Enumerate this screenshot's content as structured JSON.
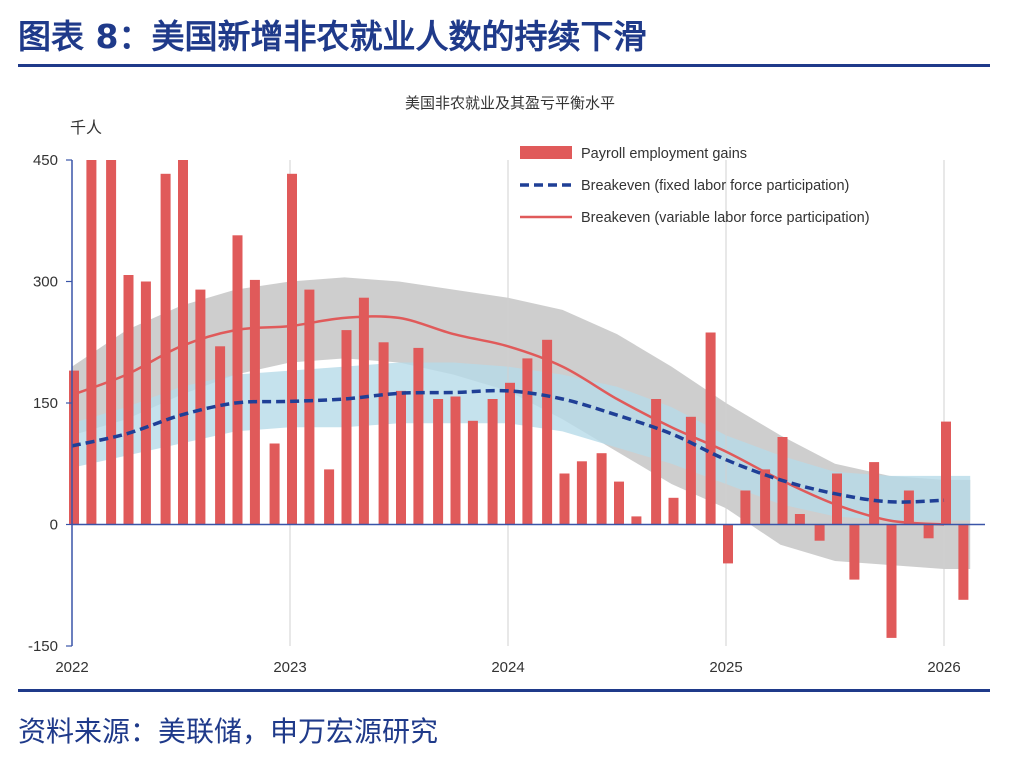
{
  "figure": {
    "title": "图表 8：美国新增非农就业人数的持续下滑",
    "source": "资料来源：美联储，申万宏源研究"
  },
  "colors": {
    "brand": "#1f3a8a",
    "bar": "#e05a5a",
    "breakeven_fixed": "#1f3f96",
    "breakeven_variable": "#e05a5a",
    "band_gray": "#c9c9c9",
    "band_blue": "#b7dbe8",
    "axis": "#3a55a8"
  },
  "chart_data": {
    "type": "bar",
    "title": "美国非农就业及其盈亏平衡水平",
    "ylabel": "千人",
    "xlabel": "",
    "ylim": [
      -150,
      450
    ],
    "xlim": [
      2022.0,
      2026.12
    ],
    "yticks": [
      450,
      300,
      150,
      0,
      -150
    ],
    "xticks": [
      2022,
      2023,
      2024,
      2025,
      2026
    ],
    "xtick_labels": [
      "2022",
      "2023",
      "2024",
      "2025",
      "2026"
    ],
    "legend": {
      "position": "top-right",
      "entries": [
        "Payroll employment gains",
        "Breakeven (fixed labor force participation)",
        "Breakeven (variable labor force participation)"
      ]
    },
    "series": [
      {
        "name": "Payroll employment gains",
        "kind": "bar",
        "x": [
          2022.0,
          2022.08,
          2022.17,
          2022.25,
          2022.33,
          2022.42,
          2022.5,
          2022.58,
          2022.67,
          2022.75,
          2022.83,
          2022.92,
          2023.0,
          2023.08,
          2023.17,
          2023.25,
          2023.33,
          2023.42,
          2023.5,
          2023.58,
          2023.67,
          2023.75,
          2023.83,
          2023.92,
          2024.0,
          2024.08,
          2024.17,
          2024.25,
          2024.33,
          2024.42,
          2024.5,
          2024.58,
          2024.67,
          2024.75,
          2024.83,
          2024.92,
          2025.0,
          2025.08,
          2025.17,
          2025.25,
          2025.33,
          2025.42,
          2025.5,
          2025.58,
          2025.67,
          2025.75,
          2025.83,
          2025.92,
          2026.0,
          2026.08
        ],
        "values": [
          190,
          450,
          450,
          308,
          300,
          433,
          450,
          290,
          220,
          357,
          302,
          100,
          433,
          290,
          68,
          240,
          280,
          225,
          165,
          218,
          155,
          158,
          128,
          155,
          175,
          205,
          228,
          63,
          78,
          88,
          53,
          10,
          155,
          33,
          133,
          237,
          -48,
          42,
          68,
          108,
          13,
          -20,
          63,
          -68,
          77,
          -140,
          42,
          -17,
          127,
          -93
        ]
      },
      {
        "name": "Breakeven (fixed labor force participation)",
        "kind": "line",
        "style": "dashed",
        "x": [
          2022.0,
          2022.25,
          2022.5,
          2022.75,
          2023.0,
          2023.25,
          2023.5,
          2023.75,
          2024.0,
          2024.25,
          2024.5,
          2024.75,
          2025.0,
          2025.25,
          2025.5,
          2025.75,
          2026.0
        ],
        "values": [
          97,
          112,
          135,
          150,
          152,
          155,
          162,
          163,
          165,
          155,
          135,
          112,
          80,
          55,
          38,
          28,
          30
        ]
      },
      {
        "name": "Breakeven (variable labor force participation)",
        "kind": "line",
        "style": "solid",
        "x": [
          2022.0,
          2022.25,
          2022.5,
          2022.75,
          2023.0,
          2023.25,
          2023.5,
          2023.75,
          2024.0,
          2024.25,
          2024.5,
          2024.75,
          2025.0,
          2025.25,
          2025.5,
          2025.75,
          2026.0
        ],
        "values": [
          160,
          185,
          220,
          240,
          245,
          255,
          255,
          235,
          220,
          195,
          155,
          120,
          90,
          55,
          25,
          5,
          0
        ]
      }
    ],
    "bands": [
      {
        "name": "Breakeven (variable) range",
        "x": [
          2022.0,
          2022.25,
          2022.5,
          2022.75,
          2023.0,
          2023.25,
          2023.5,
          2023.75,
          2024.0,
          2024.25,
          2024.5,
          2024.75,
          2025.0,
          2025.25,
          2025.5,
          2025.75,
          2026.0,
          2026.12
        ],
        "upper": [
          195,
          240,
          270,
          290,
          300,
          305,
          300,
          290,
          280,
          265,
          235,
          195,
          150,
          110,
          75,
          60,
          55,
          55
        ],
        "lower": [
          110,
          130,
          160,
          185,
          200,
          205,
          200,
          185,
          165,
          130,
          90,
          50,
          20,
          -25,
          -45,
          -50,
          -55,
          -55
        ]
      },
      {
        "name": "Breakeven (fixed) range",
        "x": [
          2022.0,
          2022.25,
          2022.5,
          2022.75,
          2023.0,
          2023.25,
          2023.5,
          2023.75,
          2024.0,
          2024.25,
          2024.5,
          2024.75,
          2025.0,
          2025.25,
          2025.5,
          2025.75,
          2026.0,
          2026.12
        ],
        "upper": [
          125,
          145,
          170,
          185,
          190,
          195,
          200,
          200,
          195,
          185,
          170,
          145,
          110,
          85,
          65,
          60,
          60,
          60
        ],
        "lower": [
          70,
          85,
          100,
          115,
          120,
          120,
          125,
          125,
          125,
          115,
          95,
          75,
          50,
          25,
          10,
          5,
          5,
          5
        ]
      }
    ]
  }
}
